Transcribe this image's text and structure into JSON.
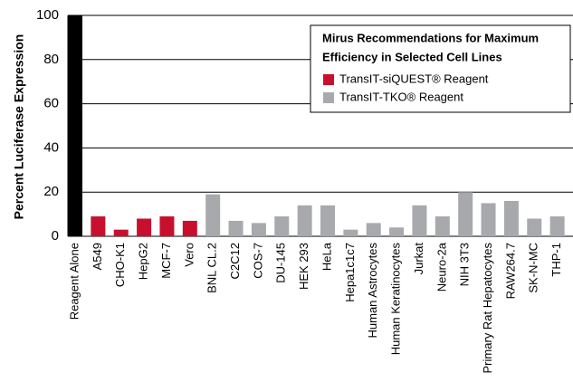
{
  "chart_data": {
    "type": "bar",
    "y_label": "Percent Luciferase Expression",
    "categories": [
      "Reagent Alone",
      "A549",
      "CHO-K1",
      "HepG2",
      "MCF-7",
      "Vero",
      "BNL CL.2",
      "C2C12",
      "COS-7",
      "DU-145",
      "HEK 293",
      "HeLa",
      "Hepa1c1c7",
      "Human Astrocytes",
      "Human Keratinocytes",
      "Jurkat",
      "Neuro-2a",
      "NIH 3T3",
      "Primary Rat Hepatocytes",
      "RAW264.7",
      "SK-N-MC",
      "THP-1"
    ],
    "values": [
      100,
      9,
      3,
      8,
      9,
      7,
      19,
      7,
      6,
      9,
      14,
      14,
      3,
      6,
      4,
      14,
      9,
      20,
      15,
      16,
      8,
      9
    ],
    "colors": [
      "#000000",
      "#c8102e",
      "#c8102e",
      "#c8102e",
      "#c8102e",
      "#c8102e",
      "#a7a9ac",
      "#a7a9ac",
      "#a7a9ac",
      "#a7a9ac",
      "#a7a9ac",
      "#a7a9ac",
      "#a7a9ac",
      "#a7a9ac",
      "#a7a9ac",
      "#a7a9ac",
      "#a7a9ac",
      "#a7a9ac",
      "#a7a9ac",
      "#a7a9ac",
      "#a7a9ac",
      "#a7a9ac"
    ],
    "ylim": [
      0,
      100
    ],
    "yticks": [
      0,
      20,
      40,
      60,
      80,
      100
    ],
    "grid": true,
    "legend_title": [
      "Mirus Recommendations for Maximum",
      "Efficiency in Selected Cell Lines"
    ],
    "legend": [
      {
        "name": "TransIT-siQUEST® Reagent",
        "color": "#c8102e"
      },
      {
        "name": "TransIT-TKO® Reagent",
        "color": "#a7a9ac"
      }
    ]
  }
}
